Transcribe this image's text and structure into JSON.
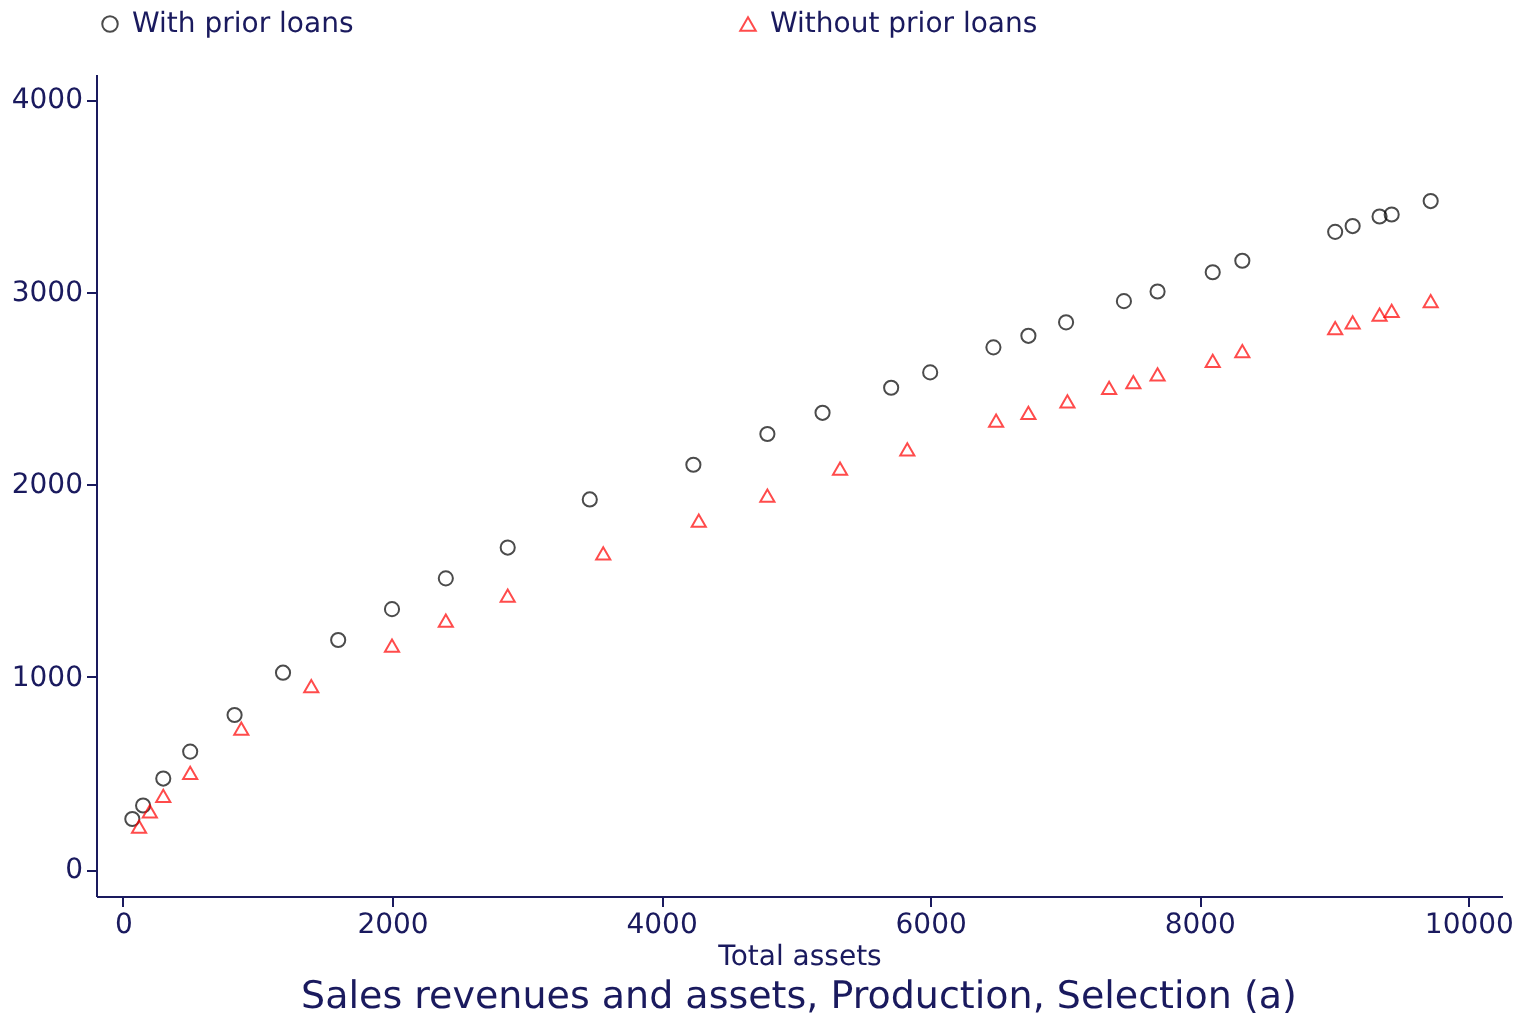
{
  "chart_data": {
    "type": "scatter",
    "title": "Sales revenues and assets, Production, Selection (a)",
    "xlabel": "Total assets",
    "xlim": [
      -200,
      10250
    ],
    "ylim": [
      -140,
      4130
    ],
    "xticks": [
      0,
      2000,
      4000,
      6000,
      8000,
      10000
    ],
    "yticks": [
      0,
      1000,
      2000,
      3000,
      4000
    ],
    "grid": false,
    "legend": "top",
    "series": [
      {
        "name": "With prior loans",
        "color": "#000000",
        "marker": "circle",
        "x": [
          70,
          150,
          300,
          500,
          830,
          1190,
          1600,
          2000,
          2400,
          2860,
          3470,
          4240,
          4790,
          5200,
          5710,
          6000,
          6470,
          6730,
          7010,
          7440,
          7690,
          8100,
          8320,
          9010,
          9140,
          9340,
          9430,
          9720
        ],
        "values": [
          260,
          330,
          470,
          610,
          800,
          1020,
          1190,
          1350,
          1510,
          1670,
          1920,
          2100,
          2260,
          2370,
          2500,
          2580,
          2710,
          2770,
          2840,
          2950,
          3000,
          3100,
          3160,
          3310,
          3340,
          3390,
          3400,
          3470
        ]
      },
      {
        "name": "Without prior loans",
        "color": "#ff0000",
        "marker": "triangle",
        "x": [
          120,
          200,
          300,
          500,
          880,
          1400,
          2000,
          2400,
          2860,
          3570,
          4280,
          4790,
          5330,
          5830,
          6490,
          6730,
          7020,
          7330,
          7510,
          7690,
          8100,
          8320,
          9010,
          9140,
          9340,
          9430,
          9720
        ],
        "values": [
          220,
          300,
          380,
          500,
          730,
          950,
          1160,
          1290,
          1420,
          1640,
          1810,
          1940,
          2080,
          2180,
          2330,
          2370,
          2430,
          2500,
          2530,
          2570,
          2640,
          2690,
          2810,
          2840,
          2880,
          2900,
          2950
        ]
      }
    ]
  }
}
